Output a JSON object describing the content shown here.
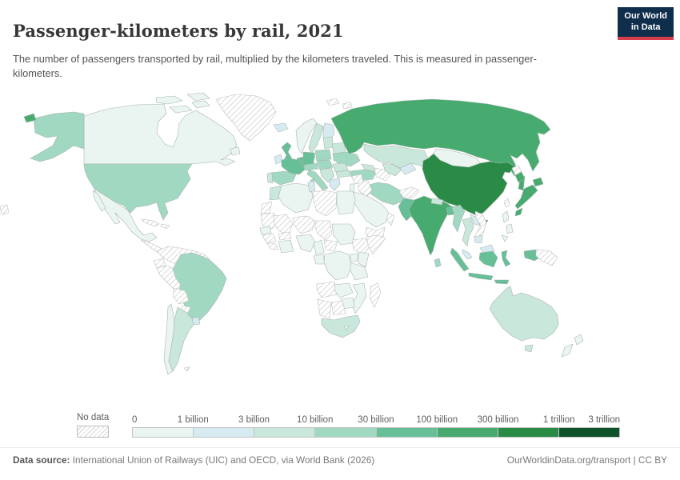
{
  "header": {
    "title": "Passenger-kilometers by rail, 2021",
    "subtitle": "The number of passengers transported by rail, multiplied by the kilometers traveled. This is measured in passenger-kilometers.",
    "logo_line1": "Our World",
    "logo_line2": "in Data",
    "logo_bg": "#0f2e4c",
    "logo_accent": "#d93d4d"
  },
  "legend": {
    "no_data_label": "No data",
    "tick_labels": [
      "0",
      "1 billion",
      "3 billion",
      "10 billion",
      "30 billion",
      "100 billion",
      "300 billion",
      "1 trillion",
      "3 trillion"
    ],
    "bin_labels": [
      "0–1 billion",
      "1–3 billion",
      "3–10 billion",
      "10–30 billion",
      "30–100 billion",
      "100–300 billion",
      "300 billion–1 trillion",
      "1–3 trillion"
    ],
    "bin_colors": [
      "#eaf5f2",
      "#d6ebf1",
      "#c9e7da",
      "#a1d8c1",
      "#66bf97",
      "#47ab70",
      "#2a8b46",
      "#0d5228"
    ],
    "no_data_pattern": "diagonal-hatch"
  },
  "footer": {
    "source_label": "Data source:",
    "source_text": " International Union of Railways (UIC) and OECD, via World Bank (2026)",
    "right_text": "OurWorldinData.org/transport | CC BY"
  },
  "map": {
    "countries": {
      "canada": 0,
      "arctic-islands-1": 0,
      "arctic-islands-2": 0,
      "arctic-islands-3": 0,
      "arctic-islands-4": 0,
      "newfoundland": 0,
      "greenland": "nodata",
      "iceland": 1,
      "alaska": 3,
      "russia-wrap": 5,
      "usa": 3,
      "mexico": 0,
      "baja": 0,
      "central-america": "nodata",
      "cuba": "nodata",
      "hispaniola": "nodata",
      "colombia-venezuela": "nodata",
      "ecuador": "nodata",
      "peru": "nodata",
      "brazil": 3,
      "bolivia": "nodata",
      "paraguay": "nodata",
      "uruguay": 1,
      "argentina": 2,
      "chile": 0,
      "falklands": "nodata",
      "norway": 0,
      "sweden": 2,
      "finland": 1,
      "denmark": 2,
      "uk": 4,
      "ireland": 1,
      "benelux": 4,
      "germany": 4,
      "poland": 3,
      "baltics": 2,
      "belarus": 2,
      "ukraine": 3,
      "france": 4,
      "spain": 3,
      "portugal": 2,
      "switzerland-austria": 3,
      "czech-hungary": 3,
      "italy": 3,
      "sicily": 3,
      "sardinia": 3,
      "balkans": 2,
      "romania": 2,
      "bulgaria": 2,
      "greece": 1,
      "turkey": 3,
      "caucasus": 2,
      "russia": 5,
      "sakhalin": 5,
      "kazakhstan": 2,
      "uzbekistan": 2,
      "turkmenistan": "nodata",
      "kyrgyzstan-tajikistan": 1,
      "mongolia": 0,
      "china": 6,
      "hainan": 6,
      "taiwan": "nodata",
      "north-korea": "nodata",
      "south-korea": 5,
      "japan-hokkaido": 5,
      "japan-honshu": 5,
      "japan-kyushu": 5,
      "india": 5,
      "nepal": 2,
      "bangladesh": 4,
      "sri-lanka": 3,
      "pakistan": 4,
      "afghanistan": "nodata",
      "iran": 3,
      "iraq": "nodata",
      "syria": "nodata",
      "levant": 0,
      "saudi-arabia": 0,
      "yemen": "nodata",
      "oman": "nodata",
      "myanmar": 3,
      "thailand": 2,
      "laos": 1,
      "vietnam": "nodata",
      "cambodia": 1,
      "malaysia": 1,
      "malaysia-borneo": 1,
      "philippines-luzon": 0,
      "philippines-visayas": 0,
      "philippines-mindanao": 0,
      "sumatra": 4,
      "java": 4,
      "kalimantan": 4,
      "sulawesi": 4,
      "lesser-sunda": 4,
      "west-papua": 4,
      "papua-new-guinea": "nodata",
      "australia": 2,
      "tasmania": 2,
      "new-zealand-north": 0,
      "new-zealand-south": 0,
      "morocco": 2,
      "western-sahara": "nodata",
      "algeria": 0,
      "tunisia": 1,
      "libya": "nodata",
      "egypt": 0,
      "mauritania": "nodata",
      "mali": "nodata",
      "niger": "nodata",
      "chad": "nodata",
      "sudan": 0,
      "ethiopia": "nodata",
      "somalia": "nodata",
      "senegal": 0,
      "guinea": "nodata",
      "sierra-leone-liberia": "nodata",
      "ivory-coast-ghana": 0,
      "burkina-faso": "nodata",
      "nigeria": 0,
      "cameroon": 0,
      "central-african-republic": "nodata",
      "gabon-congo": 0,
      "drc": 0,
      "uganda": 0,
      "kenya": 0,
      "tanzania": 0,
      "angola": "nodata",
      "zambia": 0,
      "zimbabwe": 0,
      "mozambique": 0,
      "botswana": "nodata",
      "namibia": "nodata",
      "south-africa": 2,
      "lesotho": 0,
      "madagascar": "nodata",
      "svalbard-1": "nodata",
      "svalbard-2": "nodata",
      "left-fragment": "nodata"
    }
  },
  "chart_data": {
    "type": "choropleth",
    "title": "Passenger-kilometers by rail, 2021",
    "unit": "passenger-kilometers",
    "legend_bins": [
      "0–1 billion",
      "1–3 billion",
      "3–10 billion",
      "10–30 billion",
      "30–100 billion",
      "100–300 billion",
      "300 billion–1 trillion",
      "1–3 trillion"
    ],
    "values_by_country_bin": {
      "China": "300 billion–1 trillion",
      "India": "100–300 billion",
      "Russia": "100–300 billion",
      "Japan": "100–300 billion",
      "South Korea": "100–300 billion",
      "France": "30–100 billion",
      "Germany": "30–100 billion",
      "United Kingdom": "30–100 billion",
      "Pakistan": "30–100 billion",
      "Bangladesh": "30–100 billion",
      "Indonesia": "30–100 billion",
      "United States": "10–30 billion",
      "Brazil": "10–30 billion",
      "Spain": "10–30 billion",
      "Italy": "10–30 billion",
      "Poland": "10–30 billion",
      "Ukraine": "10–30 billion",
      "Turkey": "10–30 billion",
      "Iran": "10–30 billion",
      "Myanmar": "10–30 billion",
      "Sri Lanka": "10–30 billion",
      "Kazakhstan": "3–10 billion",
      "Sweden": "3–10 billion",
      "Argentina": "3–10 billion",
      "Australia": "3–10 billion",
      "South Africa": "3–10 billion",
      "Morocco": "3–10 billion",
      "Thailand": "3–10 billion",
      "Finland": "1–3 billion",
      "Ireland": "1–3 billion",
      "Uruguay": "1–3 billion",
      "Tunisia": "1–3 billion",
      "Greece": "1–3 billion",
      "Iceland": "1–3 billion",
      "Canada": "0–1 billion",
      "Mexico": "0–1 billion",
      "Chile": "0–1 billion",
      "Norway": "0–1 billion",
      "Mongolia": "0–1 billion",
      "Saudi Arabia": "0–1 billion",
      "Algeria": "0–1 billion",
      "Egypt": "0–1 billion",
      "New Zealand": "0–1 billion"
    },
    "no_data_countries": [
      "Greenland",
      "Venezuela",
      "Colombia",
      "Ecuador",
      "Peru",
      "Bolivia",
      "Paraguay",
      "Cuba",
      "Libya",
      "Mauritania",
      "Mali",
      "Niger",
      "Chad",
      "Ethiopia",
      "Somalia",
      "Angola",
      "Botswana",
      "Namibia",
      "Madagascar",
      "Syria",
      "Iraq",
      "Yemen",
      "Oman",
      "Afghanistan",
      "Turkmenistan",
      "North Korea",
      "Vietnam",
      "Taiwan",
      "Papua New Guinea"
    ]
  }
}
